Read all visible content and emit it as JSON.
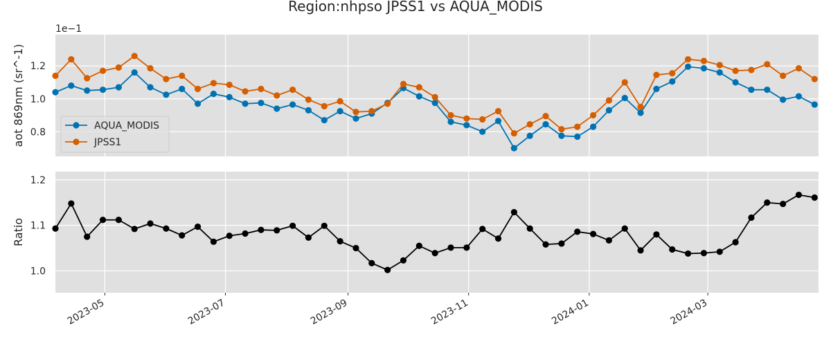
{
  "chart_data": {
    "type": "line",
    "title": "Region:nhpso JPSS1 vs AQUA_MODIS",
    "x_dates": [
      "2023-04-06",
      "2023-04-14",
      "2023-04-22",
      "2023-04-30",
      "2023-05-08",
      "2023-05-16",
      "2023-05-24",
      "2023-06-01",
      "2023-06-09",
      "2023-06-17",
      "2023-06-25",
      "2023-07-03",
      "2023-07-11",
      "2023-07-19",
      "2023-07-27",
      "2023-08-04",
      "2023-08-12",
      "2023-08-20",
      "2023-08-28",
      "2023-09-05",
      "2023-09-13",
      "2023-09-21",
      "2023-09-29",
      "2023-10-07",
      "2023-10-15",
      "2023-10-23",
      "2023-10-31",
      "2023-11-08",
      "2023-11-16",
      "2023-11-24",
      "2023-12-02",
      "2023-12-10",
      "2023-12-18",
      "2023-12-26",
      "2024-01-03",
      "2024-01-11",
      "2024-01-19",
      "2024-01-27",
      "2024-02-04",
      "2024-02-12",
      "2024-02-20",
      "2024-02-28",
      "2024-03-07",
      "2024-03-15",
      "2024-03-23",
      "2024-03-31",
      "2024-04-08",
      "2024-04-16",
      "2024-04-24"
    ],
    "x_ticks": [
      "2023-05",
      "2023-07",
      "2023-09",
      "2023-11",
      "2024-01",
      "2024-03"
    ],
    "top": {
      "ylabel": "aot 869nm (sr^-1)",
      "offset_text": "1e−1",
      "yticks": [
        "0.8",
        "1.0",
        "1.2"
      ],
      "ylim": [
        0.065,
        0.139
      ],
      "legend_position": "lower-left",
      "series": [
        {
          "name": "AQUA_MODIS",
          "color": "#0072b2",
          "values": [
            1.04,
            1.08,
            1.05,
            1.055,
            1.07,
            1.16,
            1.07,
            1.025,
            1.06,
            0.97,
            1.03,
            1.01,
            0.97,
            0.975,
            0.94,
            0.965,
            0.93,
            0.87,
            0.925,
            0.88,
            0.91,
            0.975,
            1.065,
            1.015,
            0.975,
            0.86,
            0.84,
            0.8,
            0.865,
            0.7,
            0.775,
            0.845,
            0.775,
            0.77,
            0.83,
            0.93,
            1.005,
            0.915,
            1.06,
            1.105,
            1.195,
            1.185,
            1.16,
            1.1,
            1.055,
            1.055,
            0.995,
            1.015,
            0.965
          ]
        },
        {
          "name": "JPSS1",
          "color": "#d55e00",
          "values": [
            1.14,
            1.24,
            1.125,
            1.17,
            1.19,
            1.26,
            1.185,
            1.12,
            1.14,
            1.06,
            1.095,
            1.085,
            1.045,
            1.06,
            1.02,
            1.055,
            0.995,
            0.955,
            0.985,
            0.92,
            0.925,
            0.97,
            1.09,
            1.07,
            1.01,
            0.9,
            0.88,
            0.875,
            0.925,
            0.79,
            0.845,
            0.895,
            0.815,
            0.83,
            0.9,
            0.99,
            1.1,
            0.95,
            1.145,
            1.155,
            1.24,
            1.23,
            1.205,
            1.17,
            1.175,
            1.21,
            1.14,
            1.185,
            1.12
          ]
        }
      ]
    },
    "bottom": {
      "ylabel": "Ratio",
      "yticks": [
        "1.0",
        "1.1",
        "1.2"
      ],
      "ylim": [
        0.952,
        1.218
      ],
      "series": [
        {
          "color": "#000000",
          "values": [
            1.093,
            1.148,
            1.075,
            1.112,
            1.112,
            1.092,
            1.104,
            1.093,
            1.078,
            1.097,
            1.064,
            1.077,
            1.082,
            1.09,
            1.089,
            1.099,
            1.073,
            1.099,
            1.065,
            1.05,
            1.017,
            1.002,
            1.023,
            1.055,
            1.039,
            1.051,
            1.051,
            1.092,
            1.071,
            1.129,
            1.093,
            1.058,
            1.06,
            1.086,
            1.081,
            1.067,
            1.093,
            1.045,
            1.08,
            1.047,
            1.038,
            1.039,
            1.042,
            1.063,
            1.117,
            1.15,
            1.147,
            1.167,
            1.161
          ]
        }
      ]
    }
  }
}
